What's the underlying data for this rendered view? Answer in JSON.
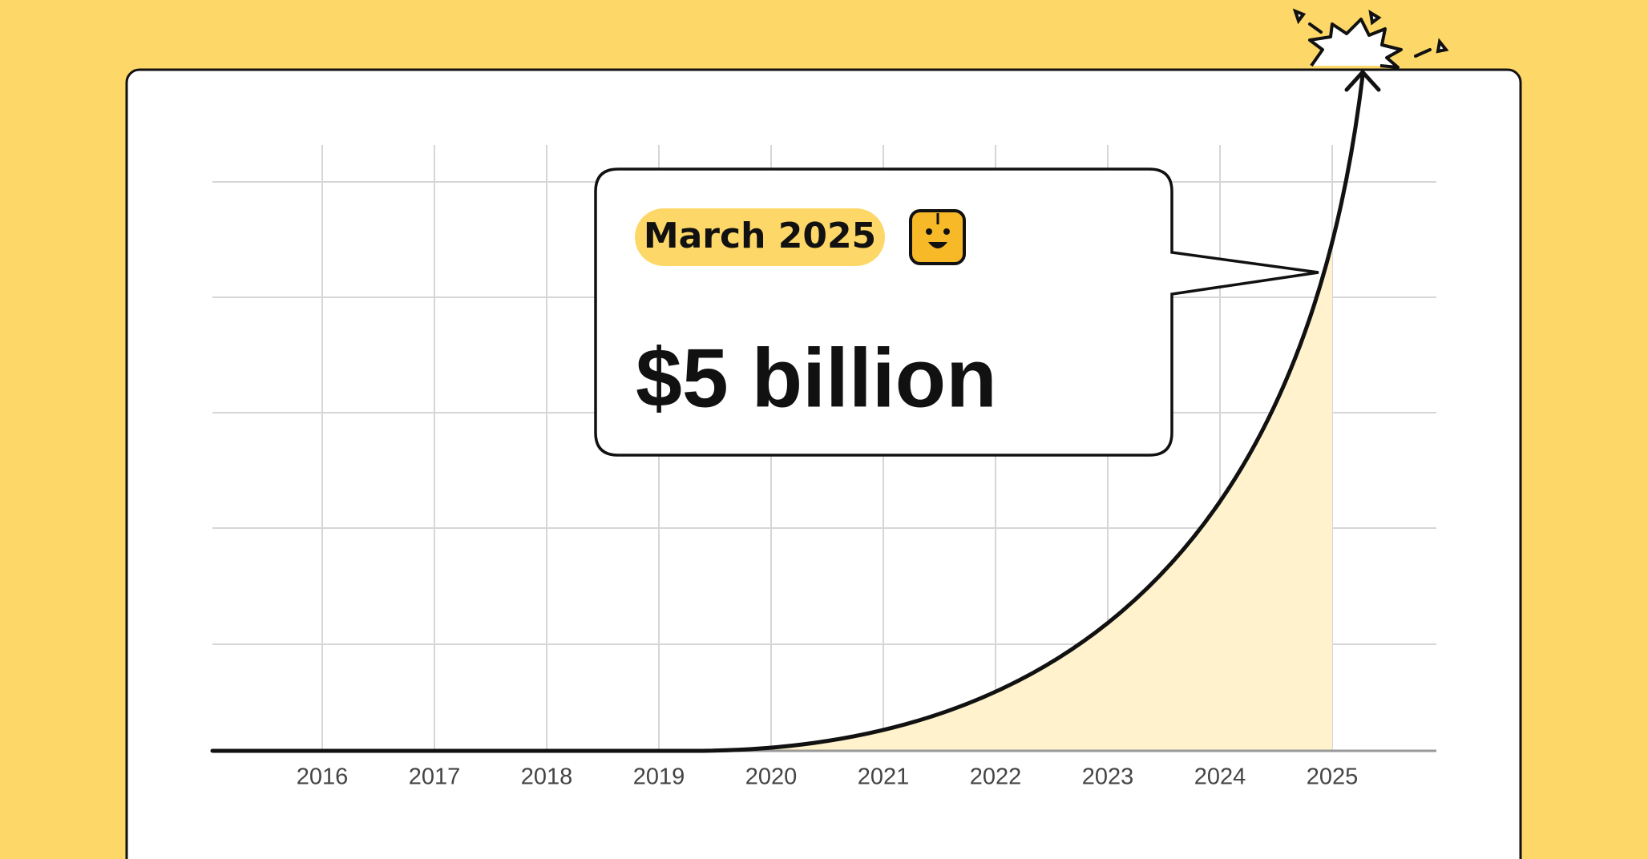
{
  "chart_data": {
    "type": "line",
    "categories": [
      "2016",
      "2017",
      "2018",
      "2019",
      "2020",
      "2021",
      "2022",
      "2023",
      "2024",
      "2025"
    ],
    "annotation": {
      "label": "March 2025",
      "value": "$5 billion"
    },
    "grid": true
  }
}
